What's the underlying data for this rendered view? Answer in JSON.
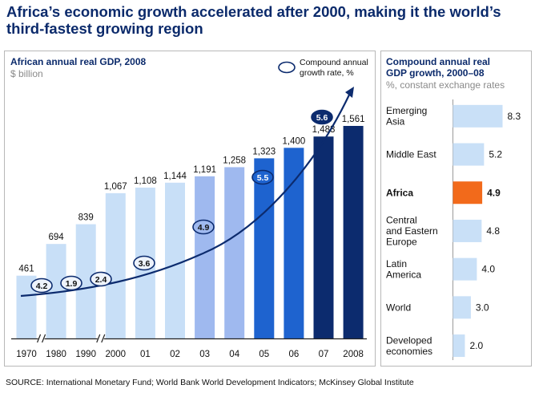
{
  "headline_line1": "Africa’s economic growth accelerated after 2000, making it the world’s",
  "headline_line2": "third-fastest growing region",
  "source": "SOURCE: International Monetary Fund; World Bank World Development Indicators; McKinsey Global Institute",
  "chart_data": [
    {
      "type": "bar",
      "title": "African annual real GDP, 2008",
      "subtitle": "$ billion",
      "legend": "Compound annual growth rate, %",
      "legend_line1": "Compound annual",
      "legend_line2": "growth rate, %",
      "categories": [
        "1970",
        "1980",
        "1990",
        "2000",
        "01",
        "02",
        "03",
        "04",
        "05",
        "06",
        "07",
        "2008"
      ],
      "values": [
        461,
        694,
        839,
        1067,
        1108,
        1144,
        1191,
        1258,
        1323,
        1400,
        1483,
        1561
      ],
      "value_labels": [
        "461",
        "694",
        "839",
        "1,067",
        "1,108",
        "1,144",
        "1,191",
        "1,258",
        "1,323",
        "1,400",
        "1,483",
        "1,561"
      ],
      "axis_breaks_after": [
        "1970",
        "1990"
      ],
      "bar_colors": [
        "#c8dff7",
        "#c8dff7",
        "#c8dff7",
        "#c8dff7",
        "#c8dff7",
        "#c8dff7",
        "#9fb9ef",
        "#9fb9ef",
        "#1e63cf",
        "#1e63cf",
        "#0c2b6e",
        "#0c2b6e"
      ],
      "growth_rates": [
        {
          "between": [
            "1970",
            "1980"
          ],
          "value": "4.2"
        },
        {
          "between": [
            "1980",
            "1990"
          ],
          "value": "1.9"
        },
        {
          "between": [
            "1990",
            "2000"
          ],
          "value": "2.4"
        },
        {
          "between": [
            "2000",
            "02"
          ],
          "value": "3.6"
        },
        {
          "between": [
            "02",
            "04"
          ],
          "value": "4.9"
        },
        {
          "between": [
            "04",
            "06"
          ],
          "value": "5.5"
        },
        {
          "between": [
            "06",
            "2008"
          ],
          "value": "5.6"
        }
      ],
      "ylim": [
        0,
        1600
      ]
    },
    {
      "type": "bar",
      "orientation": "horizontal",
      "title_line1": "Compound annual real",
      "title_line2": "GDP growth, 2000–08",
      "subtitle": "%, constant exchange rates",
      "categories": [
        [
          "Emerging",
          "Asia"
        ],
        [
          "Middle East"
        ],
        [
          "Africa"
        ],
        [
          "Central",
          "and Eastern",
          "Europe"
        ],
        [
          "Latin",
          "America"
        ],
        [
          "World"
        ],
        [
          "Developed",
          "economies"
        ]
      ],
      "values": [
        8.3,
        5.2,
        4.9,
        4.8,
        4.0,
        3.0,
        2.0
      ],
      "value_labels": [
        "8.3",
        "5.2",
        "4.9",
        "4.8",
        "4.0",
        "3.0",
        "2.0"
      ],
      "highlight": "Africa",
      "colors": {
        "default": "#c9e0f7",
        "highlight": "#f26a1b"
      },
      "xlim": [
        0,
        8.3
      ]
    }
  ]
}
